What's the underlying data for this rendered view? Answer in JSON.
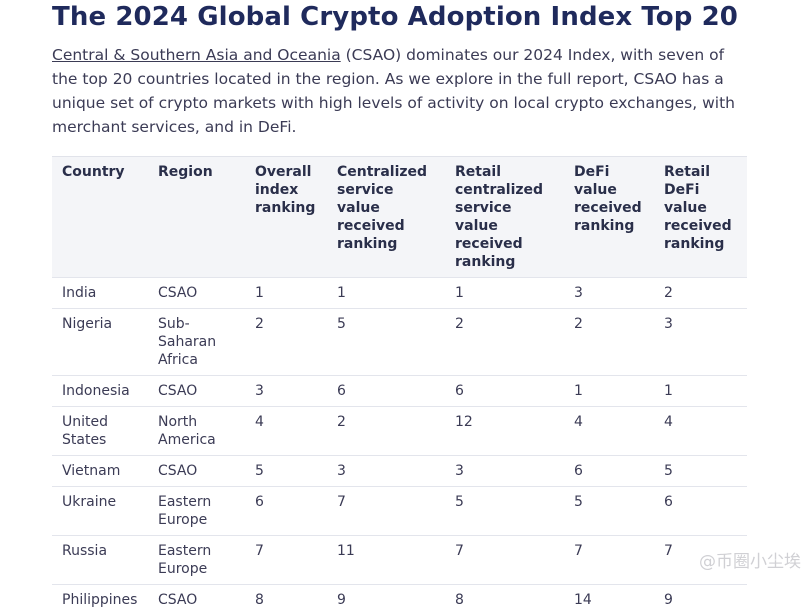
{
  "title": "The 2024 Global Crypto Adoption Index Top 20",
  "intro": {
    "link_text": "Central & Southern Asia and Oceania",
    "rest": " (CSAO) dominates our 2024 Index, with seven of the top 20 countries located in the region. As we explore in the full report, CSAO has a unique set of crypto markets with high levels of activity on local crypto exchanges, with merchant services, and in DeFi."
  },
  "table": {
    "headers": [
      "Country",
      "Region",
      "Overall index ranking",
      "Centralized service value received ranking",
      "Retail centralized service value received ranking",
      "DeFi value received ranking",
      "Retail DeFi value received ranking"
    ],
    "rows": [
      [
        "India",
        "CSAO",
        "1",
        "1",
        "1",
        "3",
        "2"
      ],
      [
        "Nigeria",
        "Sub-Saharan Africa",
        "2",
        "5",
        "2",
        "2",
        "3"
      ],
      [
        "Indonesia",
        "CSAO",
        "3",
        "6",
        "6",
        "1",
        "1"
      ],
      [
        "United States",
        "North America",
        "4",
        "2",
        "12",
        "4",
        "4"
      ],
      [
        "Vietnam",
        "CSAO",
        "5",
        "3",
        "3",
        "6",
        "5"
      ],
      [
        "Ukraine",
        "Eastern Europe",
        "6",
        "7",
        "5",
        "5",
        "6"
      ],
      [
        "Russia",
        "Eastern Europe",
        "7",
        "11",
        "7",
        "7",
        "7"
      ],
      [
        "Philippines",
        "CSAO",
        "8",
        "9",
        "8",
        "14",
        "9"
      ]
    ]
  },
  "watermark": "@币圈小尘埃"
}
